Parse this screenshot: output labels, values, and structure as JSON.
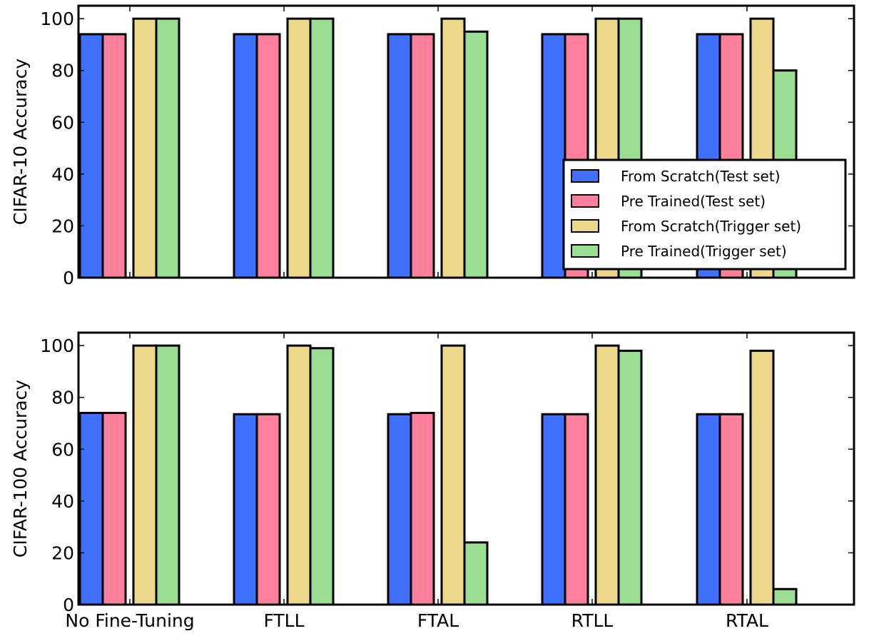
{
  "chart_data": [
    {
      "type": "bar",
      "title": "",
      "xlabel": "",
      "ylabel": "CIFAR-10 Accuracy",
      "ylim": [
        0,
        105
      ],
      "yticks": [
        "0",
        "20",
        "40",
        "60",
        "80",
        "100"
      ],
      "categories": [
        "No Fine-Tuning",
        "FTLL",
        "FTAL",
        "RTLL",
        "RTAL"
      ],
      "show_category_labels": false,
      "series": [
        {
          "name": "From Scratch(Test set)",
          "color": "#4070ff",
          "values": [
            94,
            94,
            94,
            94,
            94
          ]
        },
        {
          "name": "Pre Trained(Test set)",
          "color": "#ff809d",
          "values": [
            94,
            94,
            94,
            94,
            94
          ]
        },
        {
          "name": "From Scratch(Trigger set)",
          "color": "#ecd78a",
          "values": [
            100,
            100,
            100,
            100,
            100
          ]
        },
        {
          "name": "Pre Trained(Trigger set)",
          "color": "#99de92",
          "values": [
            100,
            100,
            95,
            100,
            80
          ]
        }
      ],
      "legend": {
        "location": "lower-right",
        "entries": [
          "From Scratch(Test set)",
          "Pre Trained(Test set)",
          "From Scratch(Trigger set)",
          "Pre Trained(Trigger set)"
        ]
      }
    },
    {
      "type": "bar",
      "title": "",
      "xlabel": "",
      "ylabel": "CIFAR-100 Accuracy",
      "ylim": [
        0,
        105
      ],
      "yticks": [
        "0",
        "20",
        "40",
        "60",
        "80",
        "100"
      ],
      "categories": [
        "No Fine-Tuning",
        "FTLL",
        "FTAL",
        "RTLL",
        "RTAL"
      ],
      "show_category_labels": true,
      "series": [
        {
          "name": "From Scratch(Test set)",
          "color": "#4070ff",
          "values": [
            74,
            73.5,
            73.5,
            73.5,
            73.5
          ]
        },
        {
          "name": "Pre Trained(Test set)",
          "color": "#ff809d",
          "values": [
            74,
            73.5,
            74,
            73.5,
            73.5
          ]
        },
        {
          "name": "From Scratch(Trigger set)",
          "color": "#ecd78a",
          "values": [
            100,
            100,
            100,
            100,
            98
          ]
        },
        {
          "name": "Pre Trained(Trigger set)",
          "color": "#99de92",
          "values": [
            100,
            99,
            24,
            98,
            6
          ]
        }
      ]
    }
  ]
}
